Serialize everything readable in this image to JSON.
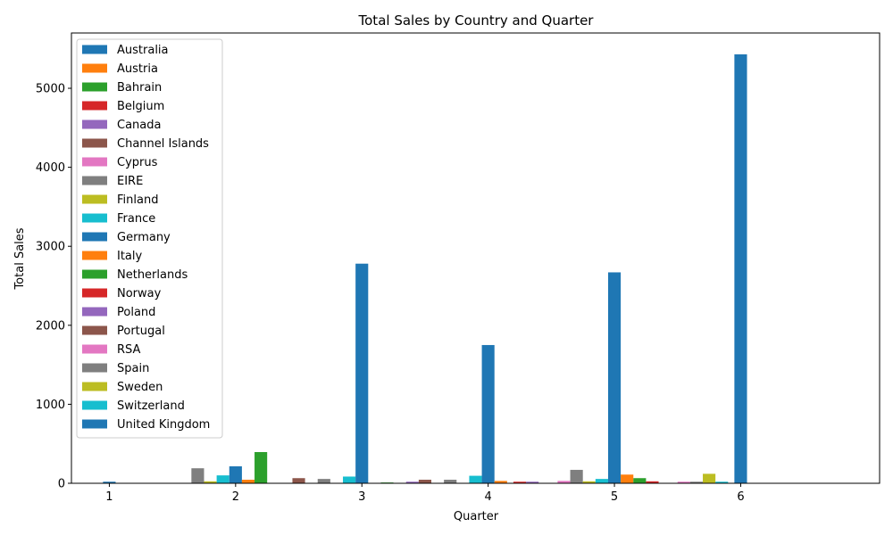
{
  "chart_data": {
    "type": "bar",
    "title": "Total Sales by Country and Quarter",
    "xlabel": "Quarter",
    "ylabel": "Total Sales",
    "ylim": [
      0,
      5700
    ],
    "xlim": [
      0.7,
      7.1
    ],
    "yticks": [
      0,
      1000,
      2000,
      3000,
      4000,
      5000
    ],
    "xticks": [
      1,
      2,
      3,
      4,
      5,
      6
    ],
    "grid": false,
    "legend_position": "upper-left",
    "bar_width": 0.1,
    "series": [
      {
        "name": "Australia",
        "color": "#1f77b4",
        "x": [
          1.0
        ],
        "values": [
          20
        ]
      },
      {
        "name": "Austria",
        "color": "#ff7f0e",
        "x": [],
        "values": []
      },
      {
        "name": "Bahrain",
        "color": "#2ca02c",
        "x": [],
        "values": []
      },
      {
        "name": "Belgium",
        "color": "#d62728",
        "x": [],
        "values": []
      },
      {
        "name": "Canada",
        "color": "#9467bd",
        "x": [],
        "values": []
      },
      {
        "name": "Channel Islands",
        "color": "#8c564b",
        "x": [],
        "values": []
      },
      {
        "name": "Cyprus",
        "color": "#e377c2",
        "x": [],
        "values": []
      },
      {
        "name": "EIRE",
        "color": "#7f7f7f",
        "x": [
          1.7
        ],
        "values": [
          190
        ]
      },
      {
        "name": "Finland",
        "color": "#bcbd22",
        "x": [
          1.8
        ],
        "values": [
          25
        ]
      },
      {
        "name": "France",
        "color": "#17becf",
        "x": [
          1.9
        ],
        "values": [
          100
        ]
      },
      {
        "name": "Germany",
        "color": "#1f77b4",
        "x": [
          2.0
        ],
        "values": [
          215
        ]
      },
      {
        "name": "Italy",
        "color": "#ff7f0e",
        "x": [
          2.1
        ],
        "values": [
          45
        ]
      },
      {
        "name": "Netherlands",
        "color": "#2ca02c",
        "x": [
          2.2,
          3.2
        ],
        "values": [
          395,
          10
        ]
      },
      {
        "name": "Norway",
        "color": "#d62728",
        "x": [
          4.25
        ],
        "values": [
          20
        ]
      },
      {
        "name": "Poland",
        "color": "#9467bd",
        "x": [
          3.4,
          4.35
        ],
        "values": [
          20,
          20
        ]
      },
      {
        "name": "Portugal",
        "color": "#8c564b",
        "x": [
          2.5,
          3.5
        ],
        "values": [
          65,
          45
        ]
      },
      {
        "name": "RSA",
        "color": "#e377c2",
        "x": [
          4.6,
          5.55
        ],
        "values": [
          30,
          20
        ]
      },
      {
        "name": "Spain",
        "color": "#7f7f7f",
        "x": [
          2.7,
          3.7,
          4.7,
          5.65
        ],
        "values": [
          55,
          45,
          170,
          20
        ]
      },
      {
        "name": "Sweden",
        "color": "#bcbd22",
        "x": [
          4.8,
          5.75
        ],
        "values": [
          25,
          120
        ]
      },
      {
        "name": "Switzerland",
        "color": "#17becf",
        "x": [
          2.9,
          3.9,
          4.9,
          5.85
        ],
        "values": [
          85,
          95,
          55,
          20
        ]
      },
      {
        "name": "United Kingdom",
        "color": "#1f77b4",
        "x": [
          3.0,
          4.0,
          5.0,
          6.0
        ],
        "values": [
          2780,
          1750,
          2670,
          5430
        ]
      },
      {
        "name": "Italy",
        "color": "#ff7f0e",
        "x": [
          4.1,
          5.1
        ],
        "values": [
          30,
          110
        ],
        "in_legend": false
      },
      {
        "name": "Netherlands",
        "color": "#2ca02c",
        "x": [
          5.2
        ],
        "values": [
          65
        ],
        "in_legend": false
      },
      {
        "name": "Norway",
        "color": "#d62728",
        "x": [
          5.3
        ],
        "values": [
          25
        ],
        "in_legend": false
      }
    ]
  }
}
